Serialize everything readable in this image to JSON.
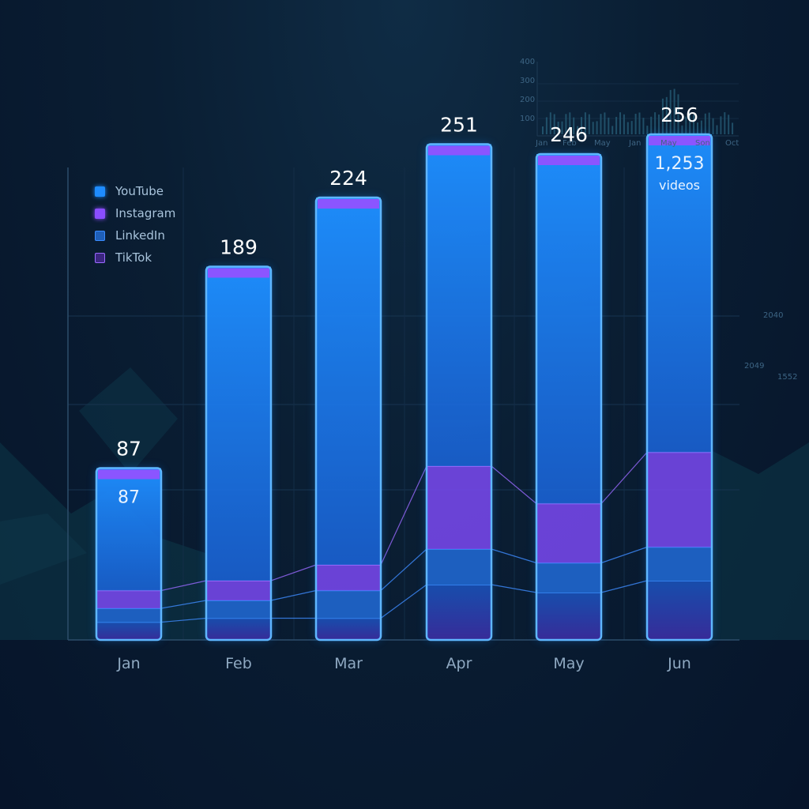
{
  "chart_data": {
    "type": "bar",
    "stacked": true,
    "title": "",
    "xlabel": "",
    "ylabel": "",
    "categories": [
      "Jan",
      "Feb",
      "Mar",
      "Apr",
      "May",
      "Jun"
    ],
    "totals": [
      87,
      189,
      224,
      251,
      246,
      256
    ],
    "series": [
      {
        "name": "YouTube",
        "color": "#1e8cff",
        "values": [
          62,
          159,
          186,
          163,
          177,
          161
        ]
      },
      {
        "name": "Instagram",
        "color": "#8a4dff",
        "values": [
          9,
          10,
          13,
          42,
          30,
          48
        ]
      },
      {
        "name": "LinkedIn",
        "color": "#1f6fd1",
        "values": [
          7,
          9,
          14,
          18,
          15,
          17
        ]
      },
      {
        "name": "TikTok",
        "color": "#7b4ae0",
        "values": [
          9,
          11,
          11,
          28,
          24,
          30
        ]
      }
    ],
    "inner_labels": {
      "Jan": "87",
      "Jun": "1,253"
    },
    "inner_sublabel": "videos",
    "ylim": [
      0,
      260
    ],
    "grid": true,
    "legend_position": "top-left"
  },
  "decor": {
    "mini_y_ticks": [
      "400",
      "300",
      "200",
      "100"
    ],
    "mini_x_ticks": [
      "Jan",
      "Feb",
      "May",
      "Jan",
      "May",
      "Son",
      "Oct"
    ],
    "side_numbers": [
      "2040",
      "2049",
      "1552"
    ]
  }
}
